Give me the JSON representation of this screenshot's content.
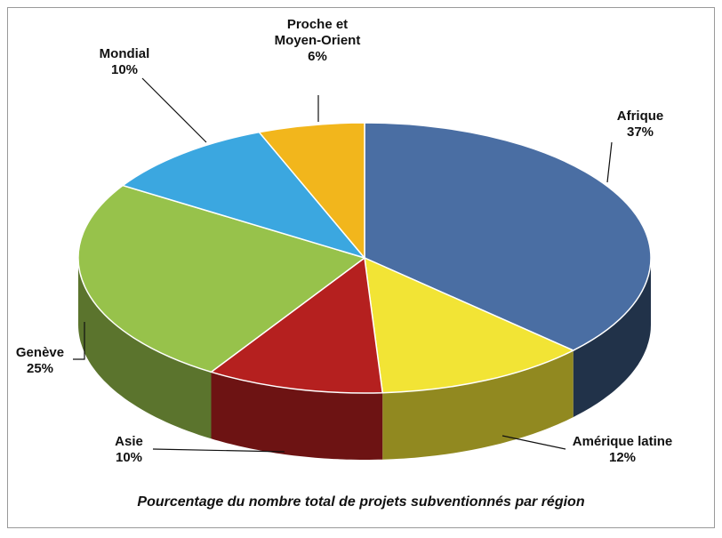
{
  "chart_data": {
    "type": "pie3d",
    "title": "Pourcentage du nombre total de projets subventionnés par région",
    "categories": [
      "Afrique",
      "Amérique latine",
      "Asie",
      "Genève",
      "Mondial",
      "Proche et Moyen-Orient"
    ],
    "values": [
      37,
      12,
      10,
      25,
      10,
      6
    ],
    "value_labels": [
      "37%",
      "12%",
      "10%",
      "25%",
      "10%",
      "6%"
    ],
    "colors": [
      "#4a6ea3",
      "#f2e435",
      "#b5201f",
      "#97c24b",
      "#3ba7e0",
      "#f2b61c"
    ]
  }
}
